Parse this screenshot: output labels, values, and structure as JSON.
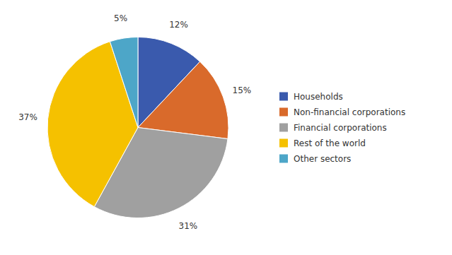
{
  "chart_data": {
    "type": "pie",
    "categories": [
      "Households",
      "Non-financial corporations",
      "Financial corporations",
      "Rest of the world",
      "Other sectors"
    ],
    "values": [
      12,
      15,
      31,
      37,
      5
    ],
    "value_labels": [
      "12%",
      "15%",
      "31%",
      "37%",
      "5%"
    ],
    "colors": [
      "#3a5aad",
      "#d96a2b",
      "#a0a0a0",
      "#f5c100",
      "#4da6c8"
    ],
    "data_labels": true,
    "legend": "right"
  }
}
